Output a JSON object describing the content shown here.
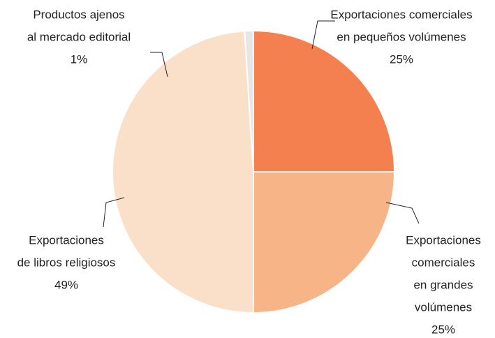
{
  "chart_data": {
    "type": "pie",
    "labels": [
      [
        "Exportaciones comerciales",
        "en pequeños volúmenes"
      ],
      [
        "Exportaciones",
        "comerciales",
        "en grandes",
        "volúmenes"
      ],
      [
        "Exportaciones",
        "de libros religiosos"
      ],
      [
        "Productos ajenos",
        "al mercado editorial"
      ]
    ],
    "values": [
      25,
      25,
      49,
      1
    ],
    "value_labels": [
      "25%",
      "25%",
      "49%",
      "1%"
    ],
    "colors": [
      "#f47f4f",
      "#f6b487",
      "#fbe0c9",
      "#e6e6e8"
    ]
  }
}
